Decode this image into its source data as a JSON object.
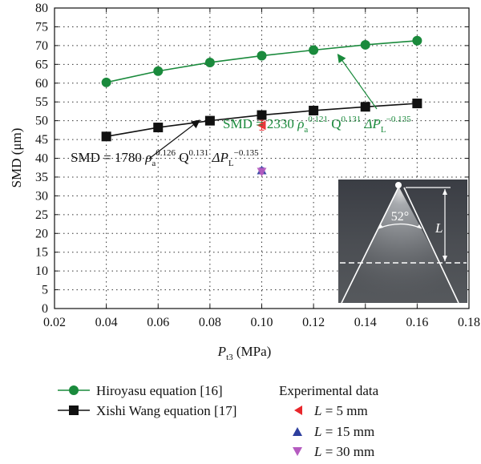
{
  "chart_data": {
    "type": "line",
    "xlabel": "P",
    "xlabel_sub": "t3",
    "xlabel_unit": " (MPa)",
    "ylabel": "SMD (μm)",
    "xlim": [
      0.02,
      0.18
    ],
    "ylim": [
      0,
      80
    ],
    "xticks": [
      0.02,
      0.04,
      0.06,
      0.08,
      0.1,
      0.12,
      0.14,
      0.16,
      0.18
    ],
    "xtick_labels": [
      "0.02",
      "0.04",
      "0.06",
      "0.08",
      "0.10",
      "0.12",
      "0.14",
      "0.16",
      "0.18"
    ],
    "yticks": [
      0,
      5,
      10,
      15,
      20,
      25,
      30,
      35,
      40,
      45,
      50,
      55,
      60,
      65,
      70,
      75,
      80
    ],
    "ytick_labels": [
      "0",
      "5",
      "10",
      "15",
      "20",
      "25",
      "30",
      "35",
      "40",
      "45",
      "50",
      "55",
      "60",
      "65",
      "70",
      "75",
      "80"
    ],
    "grid": true,
    "series": [
      {
        "name": "Hiroyasu equation [16]",
        "marker": "circle",
        "color": "#1a8a3c",
        "x": [
          0.04,
          0.06,
          0.08,
          0.1,
          0.12,
          0.14,
          0.16
        ],
        "y": [
          60.2,
          63.2,
          65.5,
          67.3,
          68.8,
          70.2,
          71.3
        ]
      },
      {
        "name": "Xishi Wang equation [17]",
        "marker": "square",
        "color": "#111111",
        "x": [
          0.04,
          0.06,
          0.08,
          0.1,
          0.12,
          0.14,
          0.16
        ],
        "y": [
          45.8,
          48.2,
          50.0,
          51.5,
          52.7,
          53.7,
          54.6
        ]
      }
    ],
    "experimental": {
      "title": "Experimental data",
      "points": [
        {
          "label": "L = 5 mm",
          "marker": "triangle-left",
          "color": "#e8262b",
          "x": 0.1,
          "y": 48.8,
          "err": 1.3
        },
        {
          "label": "L = 15 mm",
          "marker": "triangle-up",
          "color": "#2e3f9e",
          "x": 0.1,
          "y": 36.8,
          "err": 0.7
        },
        {
          "label": "L = 30 mm",
          "marker": "triangle-down",
          "color": "#b55bc0",
          "x": 0.1,
          "y": 36.4,
          "err": 0.6
        }
      ]
    },
    "annotations": {
      "hiroyasu": {
        "lead": "SMD = 2330 ",
        "rho": "ρ",
        "rho_sub": "a",
        "rho_exp": "0.121",
        "q": " Q",
        "q_exp": "0.131",
        "dp": " ΔP",
        "dp_sub": "L",
        "dp_exp": "−0.135",
        "color": "#1a8a3c",
        "arrow_to": {
          "x": 0.13,
          "y": 68.5
        }
      },
      "wang": {
        "lead": "SMD = 1780 ",
        "rho": "ρ",
        "rho_sub": "a",
        "rho_exp": "0.126",
        "q": " Q",
        "q_exp": "0.131",
        "dp": " ΔP",
        "dp_sub": "L",
        "dp_exp": "−0.135",
        "color": "#111111",
        "arrow_to": {
          "x": 0.076,
          "y": 49.7
        }
      }
    },
    "inset": {
      "angle_label": "52°",
      "length_label": "L"
    }
  }
}
